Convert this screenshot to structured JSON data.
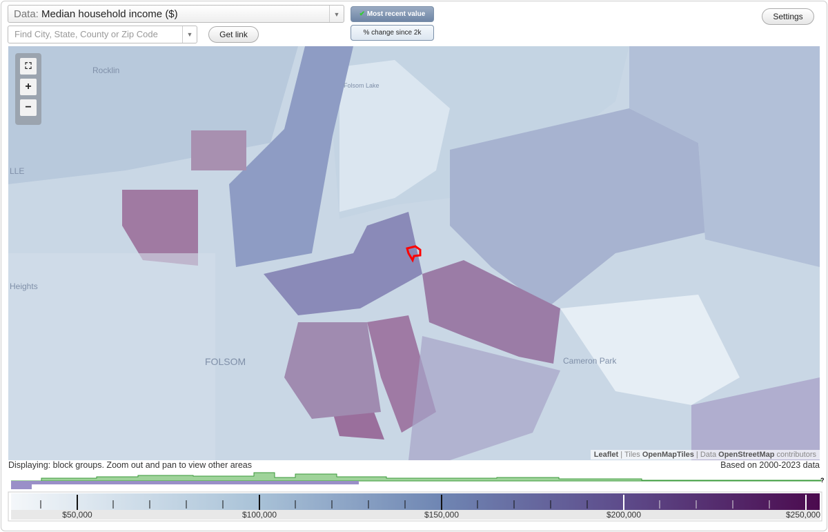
{
  "data_select": {
    "label": "Data:",
    "value": "Median household income ($)"
  },
  "search": {
    "placeholder": "Find City, State, County or Zip Code"
  },
  "buttons": {
    "get_link": "Get link",
    "most_recent": "Most recent value",
    "pct_change": "% change since 2k",
    "settings": "Settings"
  },
  "map": {
    "place_labels": [
      "Rocklin",
      "Folsom Lake",
      "LLE",
      "Heights",
      "FOLSOM",
      "Cameron Park"
    ],
    "attribution": {
      "leaflet": "Leaflet",
      "tiles_label": "Tiles",
      "tiles": "OpenMapTiles",
      "data_label": "Data",
      "data": "OpenStreetMap",
      "contributors": "contributors"
    }
  },
  "status": {
    "displaying": "Displaying: block groups. Zoom out and pan to view other areas",
    "data_range": "Based on 2000-2023 data",
    "unknown": "?"
  },
  "legend": {
    "labels": [
      "$50,000",
      "$100,000",
      "$150,000",
      "$200,000",
      "$250,000"
    ]
  }
}
